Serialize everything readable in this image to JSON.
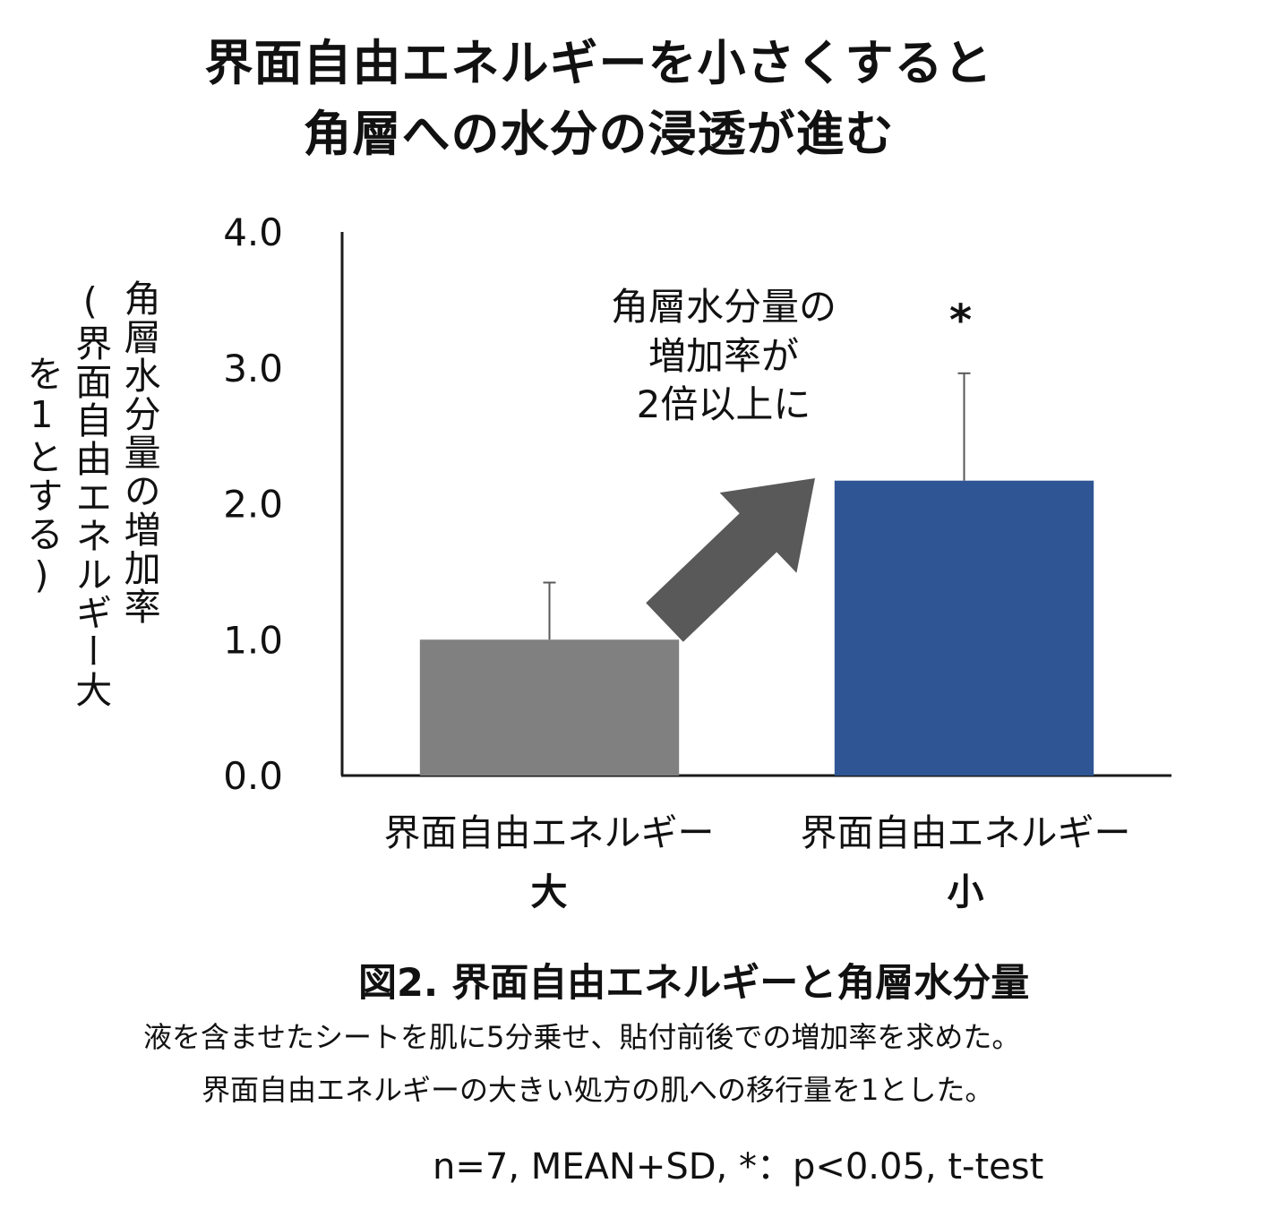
{
  "title": {
    "line1": "界面自由エネルギーを小さくすると",
    "line2": "角層への水分の浸透が進む"
  },
  "ylabel": {
    "col1": "角層水分量の増加率",
    "col2": "(界面自由エネルギー大",
    "col3": "を1とする)"
  },
  "annotation": {
    "line1": "角層水分量の",
    "line2": "増加率が",
    "line3": "2倍以上に"
  },
  "significance_mark": "*",
  "caption": {
    "title": "図2. 界面自由エネルギーと角層水分量",
    "line1": "液を含ませたシートを肌に5分乗せ、貼付前後での増加率を求めた。",
    "line2": "界面自由エネルギーの大きい処方の肌への移行量を1とした。",
    "stats": "n=7, MEAN+SD, *：p<0.05, t-test"
  },
  "colors": {
    "bar_large": "#808080",
    "bar_small": "#2f5594",
    "arrow": "#595959",
    "axis": "#1a1a1a"
  },
  "chart_data": {
    "type": "bar",
    "categories": [
      {
        "main": "界面自由エネルギー",
        "sub": "大"
      },
      {
        "main": "界面自由エネルギー",
        "sub": "小"
      }
    ],
    "values": [
      1.0,
      2.17
    ],
    "errors": [
      0.42,
      0.79
    ],
    "yticks": [
      "0.0",
      "1.0",
      "2.0",
      "3.0",
      "4.0"
    ],
    "ylim": [
      0,
      4.0
    ],
    "grid": false
  }
}
